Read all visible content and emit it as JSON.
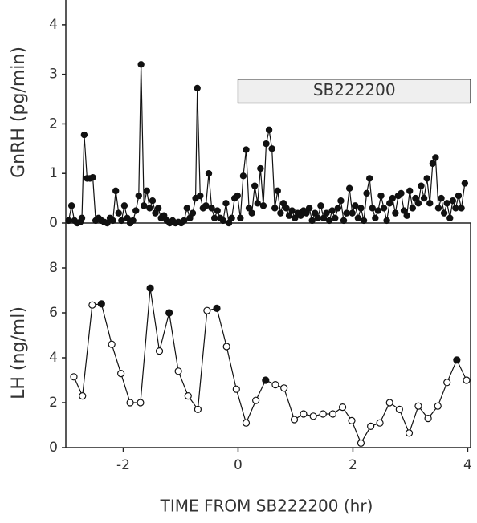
{
  "chart_data": [
    {
      "type": "line",
      "ylabel": "GnRH (pg/min)",
      "xlim": [
        -3,
        4.05
      ],
      "ylim": [
        0,
        4.5
      ],
      "yticks": [
        0,
        1,
        2,
        3,
        4
      ],
      "annotation": {
        "text": "SB222200",
        "x": [
          0,
          4.05
        ],
        "y": [
          2.42,
          2.9
        ]
      },
      "x": [
        -2.95,
        -2.9,
        -2.85,
        -2.8,
        -2.75,
        -2.72,
        -2.68,
        -2.63,
        -2.58,
        -2.53,
        -2.48,
        -2.43,
        -2.38,
        -2.33,
        -2.28,
        -2.23,
        -2.18,
        -2.13,
        -2.08,
        -2.03,
        -1.98,
        -1.93,
        -1.88,
        -1.83,
        -1.78,
        -1.73,
        -1.69,
        -1.64,
        -1.59,
        -1.54,
        -1.49,
        -1.44,
        -1.39,
        -1.34,
        -1.29,
        -1.24,
        -1.19,
        -1.14,
        -1.09,
        -1.04,
        -0.99,
        -0.94,
        -0.89,
        -0.84,
        -0.79,
        -0.74,
        -0.71,
        -0.66,
        -0.61,
        -0.56,
        -0.51,
        -0.46,
        -0.41,
        -0.36,
        -0.31,
        -0.26,
        -0.21,
        -0.16,
        -0.11,
        -0.06,
        -0.01,
        0.04,
        0.09,
        0.14,
        0.19,
        0.24,
        0.29,
        0.34,
        0.39,
        0.44,
        0.49,
        0.54,
        0.59,
        0.64,
        0.69,
        0.74,
        0.79,
        0.84,
        0.89,
        0.94,
        0.99,
        1.04,
        1.09,
        1.14,
        1.19,
        1.24,
        1.29,
        1.34,
        1.39,
        1.44,
        1.49,
        1.54,
        1.59,
        1.64,
        1.69,
        1.74,
        1.79,
        1.84,
        1.89,
        1.94,
        1.99,
        2.04,
        2.09,
        2.14,
        2.19,
        2.24,
        2.29,
        2.34,
        2.39,
        2.44,
        2.49,
        2.54,
        2.59,
        2.64,
        2.69,
        2.74,
        2.79,
        2.84,
        2.89,
        2.94,
        2.99,
        3.04,
        3.09,
        3.14,
        3.19,
        3.24,
        3.29,
        3.34,
        3.39,
        3.44,
        3.49,
        3.54,
        3.59,
        3.64,
        3.69,
        3.74,
        3.79,
        3.84,
        3.89,
        3.95
      ],
      "series": [
        {
          "color": "#111",
          "values": [
            0.05,
            0.35,
            0.05,
            0,
            0.02,
            0.1,
            1.78,
            0.9,
            0.9,
            0.92,
            0.05,
            0.1,
            0.05,
            0.02,
            0,
            0.1,
            0.05,
            0.65,
            0.2,
            0.05,
            0.35,
            0.1,
            0,
            0.05,
            0.25,
            0.55,
            3.2,
            0.35,
            0.65,
            0.3,
            0.45,
            0.2,
            0.3,
            0.1,
            0.15,
            0.05,
            0,
            0.05,
            0,
            0.02,
            0,
            0.05,
            0.3,
            0.1,
            0.2,
            0.5,
            2.72,
            0.55,
            0.3,
            0.35,
            1.0,
            0.3,
            0.1,
            0.25,
            0.1,
            0.05,
            0.4,
            0,
            0.1,
            0.5,
            0.55,
            0.1,
            0.95,
            1.48,
            0.3,
            0.2,
            0.75,
            0.4,
            1.1,
            0.35,
            1.6,
            1.88,
            1.5,
            0.3,
            0.65,
            0.2,
            0.4,
            0.3,
            0.15,
            0.25,
            0.1,
            0.2,
            0.15,
            0.25,
            0.2,
            0.3,
            0.05,
            0.2,
            0.1,
            0.35,
            0.1,
            0.2,
            0.05,
            0.25,
            0.1,
            0.3,
            0.45,
            0.05,
            0.2,
            0.7,
            0.2,
            0.35,
            0.1,
            0.3,
            0.05,
            0.6,
            0.9,
            0.3,
            0.1,
            0.25,
            0.55,
            0.3,
            0.05,
            0.4,
            0.5,
            0.2,
            0.55,
            0.6,
            0.25,
            0.15,
            0.65,
            0.3,
            0.5,
            0.4,
            0.75,
            0.5,
            0.9,
            0.4,
            1.2,
            1.32,
            0.3,
            0.5,
            0.2,
            0.4,
            0.1,
            0.45,
            0.3,
            0.55,
            0.3,
            0.8
          ]
        }
      ]
    },
    {
      "type": "line",
      "ylabel": "LH (ng/ml)",
      "xlabel": "TIME FROM SB222200 (hr)",
      "xlim": [
        -3,
        4.05
      ],
      "xticks": [
        -2,
        0,
        2,
        4
      ],
      "ylim": [
        0,
        10
      ],
      "yticks": [
        0,
        2,
        4,
        6,
        8
      ],
      "x": [
        -2.86,
        -2.71,
        -2.54,
        -2.38,
        -2.2,
        -2.04,
        -1.88,
        -1.7,
        -1.53,
        -1.37,
        -1.2,
        -1.04,
        -0.87,
        -0.7,
        -0.54,
        -0.37,
        -0.2,
        -0.03,
        0.14,
        0.31,
        0.48,
        0.65,
        0.8,
        0.98,
        1.14,
        1.31,
        1.48,
        1.65,
        1.82,
        1.98,
        2.14,
        2.31,
        2.47,
        2.64,
        2.81,
        2.98,
        3.14,
        3.31,
        3.48,
        3.64,
        3.81,
        3.98
      ],
      "series": [
        {
          "color": "#111",
          "values": [
            3.15,
            2.3,
            6.35,
            6.4,
            4.6,
            3.3,
            2.0,
            2.0,
            7.1,
            4.3,
            6.0,
            3.4,
            2.3,
            1.7,
            6.1,
            6.2,
            4.5,
            2.6,
            1.1,
            2.1,
            3.0,
            2.8,
            2.65,
            1.25,
            1.5,
            1.4,
            1.5,
            1.5,
            1.8,
            1.2,
            0.2,
            0.95,
            1.1,
            2.0,
            1.7,
            0.65,
            1.85,
            1.3,
            1.85,
            2.9,
            3.9,
            3.0
          ],
          "filled": [
            false,
            false,
            false,
            true,
            false,
            false,
            false,
            false,
            true,
            false,
            true,
            false,
            false,
            false,
            false,
            true,
            false,
            false,
            false,
            false,
            true,
            false,
            false,
            false,
            false,
            false,
            false,
            false,
            false,
            false,
            false,
            false,
            false,
            false,
            false,
            false,
            false,
            false,
            false,
            false,
            true,
            false
          ]
        }
      ]
    }
  ]
}
